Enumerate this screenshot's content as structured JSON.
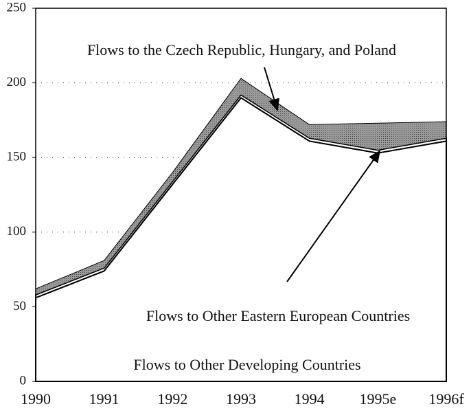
{
  "chart_data": {
    "type": "stacked_area",
    "categories": [
      "1990",
      "1991",
      "1992",
      "1993",
      "1994",
      "1995e",
      "1996f"
    ],
    "series": [
      {
        "name": "Flows to Other Developing Countries",
        "color": "#ffffff",
        "values": [
          56,
          74,
          132,
          190,
          161,
          153,
          161
        ]
      },
      {
        "name": "Flows to Other Eastern European Countries",
        "color": "#ffffff",
        "values": [
          2,
          2,
          2,
          2,
          2,
          2,
          2
        ]
      },
      {
        "name": "Flows to the Czech Republic, Hungary, and Poland",
        "color": "#8a8a8a",
        "values": [
          4,
          5,
          6,
          11,
          9,
          18,
          11
        ]
      }
    ],
    "ylim": [
      0,
      250
    ],
    "yticks": [
      0,
      50,
      100,
      150,
      200,
      250
    ],
    "grid": true
  }
}
